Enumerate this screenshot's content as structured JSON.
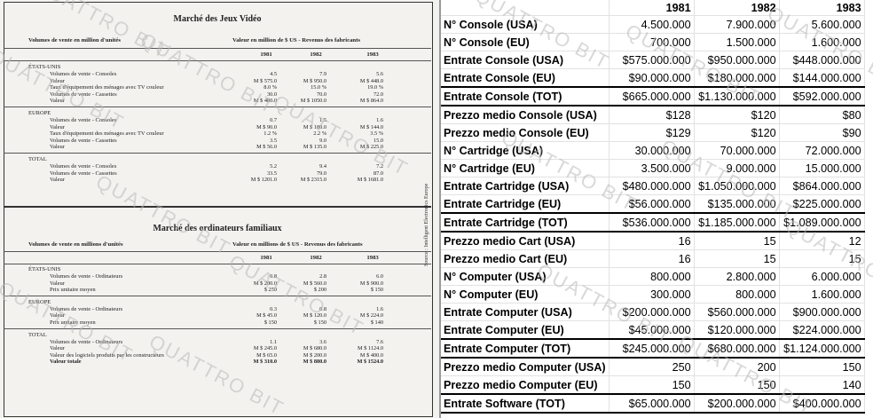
{
  "watermark": "QUATTRO BIT",
  "scan": {
    "video": {
      "title": "Marché des Jeux Vidéo",
      "left_header": "Volumes de vente en million d'unités",
      "right_header": "Valeur en million de $ US - Revenus des fabricants",
      "years": [
        "1981",
        "1982",
        "1983"
      ],
      "groups": [
        {
          "region": "ÉTATS-UNIS",
          "rows": [
            {
              "label": "Volumes de vente - Consoles",
              "values": [
                "4.5",
                "7.9",
                "5.6"
              ]
            },
            {
              "label": "Valeur",
              "values": [
                "M $ 575.0",
                "M $ 950.0",
                "M $ 448.0"
              ]
            },
            {
              "label": "Taux d'équipement des ménages avec TV couleur",
              "values": [
                "8.0 %",
                "15.0 %",
                "19.0 %"
              ]
            },
            {
              "label": "Volumes de vente - Cassettes",
              "values": [
                "30.0",
                "70.0",
                "72.0"
              ]
            },
            {
              "label": "Valeur",
              "values": [
                "M $ 480.0",
                "M $ 1050.0",
                "M $ 864.0"
              ]
            }
          ]
        },
        {
          "region": "EUROPE",
          "rows": [
            {
              "label": "Volumes de vente - Consoles",
              "values": [
                "0.7",
                "1.5",
                "1.6"
              ]
            },
            {
              "label": "Valeur",
              "values": [
                "M $ 90.0",
                "M $ 180.0",
                "M $ 144.0"
              ]
            },
            {
              "label": "Taux d'équipement des ménages avec TV couleur",
              "values": [
                "1.2 %",
                "2.2 %",
                "3.5 %"
              ]
            },
            {
              "label": "Volumes de vente - Cassettes",
              "values": [
                "3.5",
                "9.0",
                "15.0"
              ]
            },
            {
              "label": "Valeur",
              "values": [
                "M $ 56.0",
                "M $ 135.0",
                "M $ 225.0"
              ]
            }
          ]
        },
        {
          "region": "TOTAL",
          "rows": [
            {
              "label": "Volumes de vente - Consoles",
              "values": [
                "5.2",
                "9.4",
                "7.2"
              ]
            },
            {
              "label": "Volumes de vente - Cassettes",
              "values": [
                "33.5",
                "79.0",
                "87.0"
              ]
            },
            {
              "label": "Valeur",
              "values": [
                "M $ 1201.0",
                "M $ 2315.0",
                "M $ 1681.0"
              ]
            }
          ]
        }
      ]
    },
    "computers": {
      "title": "Marché des ordinateurs familiaux",
      "left_header": "Volumes de vente en millions d'unités",
      "right_header": "Valeur en millions de $ US - Revenus des fabricants",
      "years": [
        "1981",
        "1982",
        "1983"
      ],
      "groups": [
        {
          "region": "ÉTATS-UNIS",
          "rows": [
            {
              "label": "Volumes de vente - Ordinateurs",
              "values": [
                "0.8",
                "2.8",
                "6.0"
              ]
            },
            {
              "label": "Valeur",
              "values": [
                "M $ 200.0",
                "M $ 560.0",
                "M $ 900.0"
              ]
            },
            {
              "label": "Prix unitaire moyen",
              "values": [
                "$ 250",
                "$ 200",
                "$ 150"
              ]
            }
          ]
        },
        {
          "region": "EUROPE",
          "rows": [
            {
              "label": "Volumes de vente - Ordinateurs",
              "values": [
                "0.3",
                "0.8",
                "1.6"
              ]
            },
            {
              "label": "Valeur",
              "values": [
                "M $ 45.0",
                "M $ 120.0",
                "M $ 224.0"
              ]
            },
            {
              "label": "Prix unitaire moyen",
              "values": [
                "$ 150",
                "$ 150",
                "$ 140"
              ]
            }
          ]
        },
        {
          "region": "TOTAL",
          "rows": [
            {
              "label": "Volumes de vente - Ordinateurs",
              "values": [
                "1.1",
                "3.6",
                "7.6"
              ]
            },
            {
              "label": "Valeur",
              "values": [
                "M $ 245.0",
                "M $ 680.0",
                "M $ 1124.0"
              ]
            },
            {
              "label": "Valeur des logiciels produits par les constructeurs",
              "values": [
                "M $ 65.0",
                "M $ 200.0",
                "M $ 400.0"
              ]
            },
            {
              "label": "Valeur totale",
              "values": [
                "M $ 310.0",
                "M $ 880.0",
                "M $ 1524.0"
              ]
            }
          ]
        }
      ]
    },
    "source": "Source : Intelligent Electronics Europe"
  },
  "sheet": {
    "years": [
      "1981",
      "1982",
      "1983"
    ],
    "rows": [
      {
        "label": "N° Console (USA)",
        "values": [
          "4.500.000",
          "7.900.000",
          "5.600.000"
        ],
        "total": false
      },
      {
        "label": "N° Console (EU)",
        "values": [
          "700.000",
          "1.500.000",
          "1.600.000"
        ],
        "total": false
      },
      {
        "label": "Entrate Console (USA)",
        "values": [
          "$575.000.000",
          "$950.000.000",
          "$448.000.000"
        ],
        "total": false
      },
      {
        "label": "Entrate Console (EU)",
        "values": [
          "$90.000.000",
          "$180.000.000",
          "$144.000.000"
        ],
        "total": false
      },
      {
        "label": "Entrate Console (TOT)",
        "values": [
          "$665.000.000",
          "$1.130.000.000",
          "$592.000.000"
        ],
        "total": true
      },
      {
        "label": "Prezzo medio Console (USA)",
        "values": [
          "$128",
          "$120",
          "$80"
        ],
        "total": false
      },
      {
        "label": "Prezzo medio Console (EU)",
        "values": [
          "$129",
          "$120",
          "$90"
        ],
        "total": false
      },
      {
        "label": "N° Cartridge (USA)",
        "values": [
          "30.000.000",
          "70.000.000",
          "72.000.000"
        ],
        "total": false
      },
      {
        "label": "N° Cartridge (EU)",
        "values": [
          "3.500.000",
          "9.000.000",
          "15.000.000"
        ],
        "total": false
      },
      {
        "label": "Entrate Cartridge (USA)",
        "values": [
          "$480.000.000",
          "$1.050.000.000",
          "$864.000.000"
        ],
        "total": false
      },
      {
        "label": "Entrate Cartridge (EU)",
        "values": [
          "$56.000.000",
          "$135.000.000",
          "$225.000.000"
        ],
        "total": false
      },
      {
        "label": "Entrate Cartridge (TOT)",
        "values": [
          "$536.000.000",
          "$1.185.000.000",
          "$1.089.000.000"
        ],
        "total": true
      },
      {
        "label": "Prezzo medio Cart (USA)",
        "values": [
          "16",
          "15",
          "12"
        ],
        "total": false
      },
      {
        "label": "Prezzo medio Cart (EU)",
        "values": [
          "16",
          "15",
          "15"
        ],
        "total": false
      },
      {
        "label": "N° Computer (USA)",
        "values": [
          "800.000",
          "2.800.000",
          "6.000.000"
        ],
        "total": false
      },
      {
        "label": "N° Computer (EU)",
        "values": [
          "300.000",
          "800.000",
          "1.600.000"
        ],
        "total": false
      },
      {
        "label": "Entrate Computer (USA)",
        "values": [
          "$200.000.000",
          "$560.000.000",
          "$900.000.000"
        ],
        "total": false
      },
      {
        "label": "Entrate Computer (EU)",
        "values": [
          "$45.000.000",
          "$120.000.000",
          "$224.000.000"
        ],
        "total": false
      },
      {
        "label": "Entrate Computer (TOT)",
        "values": [
          "$245.000.000",
          "$680.000.000",
          "$1.124.000.000"
        ],
        "total": true
      },
      {
        "label": "Prezzo medio Computer (USA)",
        "values": [
          "250",
          "200",
          "150"
        ],
        "total": false
      },
      {
        "label": "Prezzo medio Computer (EU)",
        "values": [
          "150",
          "150",
          "140"
        ],
        "total": false
      },
      {
        "label": "Entrate Software (TOT)",
        "values": [
          "$65.000.000",
          "$200.000.000",
          "$400.000.000"
        ],
        "total": true
      }
    ]
  }
}
